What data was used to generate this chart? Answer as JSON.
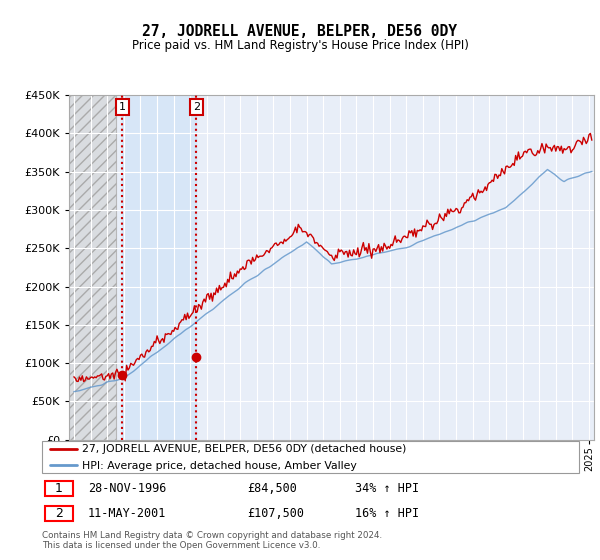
{
  "title": "27, JODRELL AVENUE, BELPER, DE56 0DY",
  "subtitle": "Price paid vs. HM Land Registry's House Price Index (HPI)",
  "legend_line1": "27, JODRELL AVENUE, BELPER, DE56 0DY (detached house)",
  "legend_line2": "HPI: Average price, detached house, Amber Valley",
  "transaction1_date": "28-NOV-1996",
  "transaction1_price": "£84,500",
  "transaction1_hpi": "34% ↑ HPI",
  "transaction2_date": "11-MAY-2001",
  "transaction2_price": "£107,500",
  "transaction2_hpi": "16% ↑ HPI",
  "footer": "Contains HM Land Registry data © Crown copyright and database right 2024.\nThis data is licensed under the Open Government Licence v3.0.",
  "red_color": "#cc0000",
  "blue_color": "#6699cc",
  "plot_bg_color": "#e8eef8",
  "grid_color": "#ffffff",
  "ylim": [
    0,
    450000
  ],
  "yticks": [
    0,
    50000,
    100000,
    150000,
    200000,
    250000,
    300000,
    350000,
    400000,
    450000
  ],
  "transaction1_x": 1996.91,
  "transaction2_x": 2001.36,
  "transaction1_y": 84500,
  "transaction2_y": 107500,
  "xmin": 1993.7,
  "xmax": 2025.3
}
